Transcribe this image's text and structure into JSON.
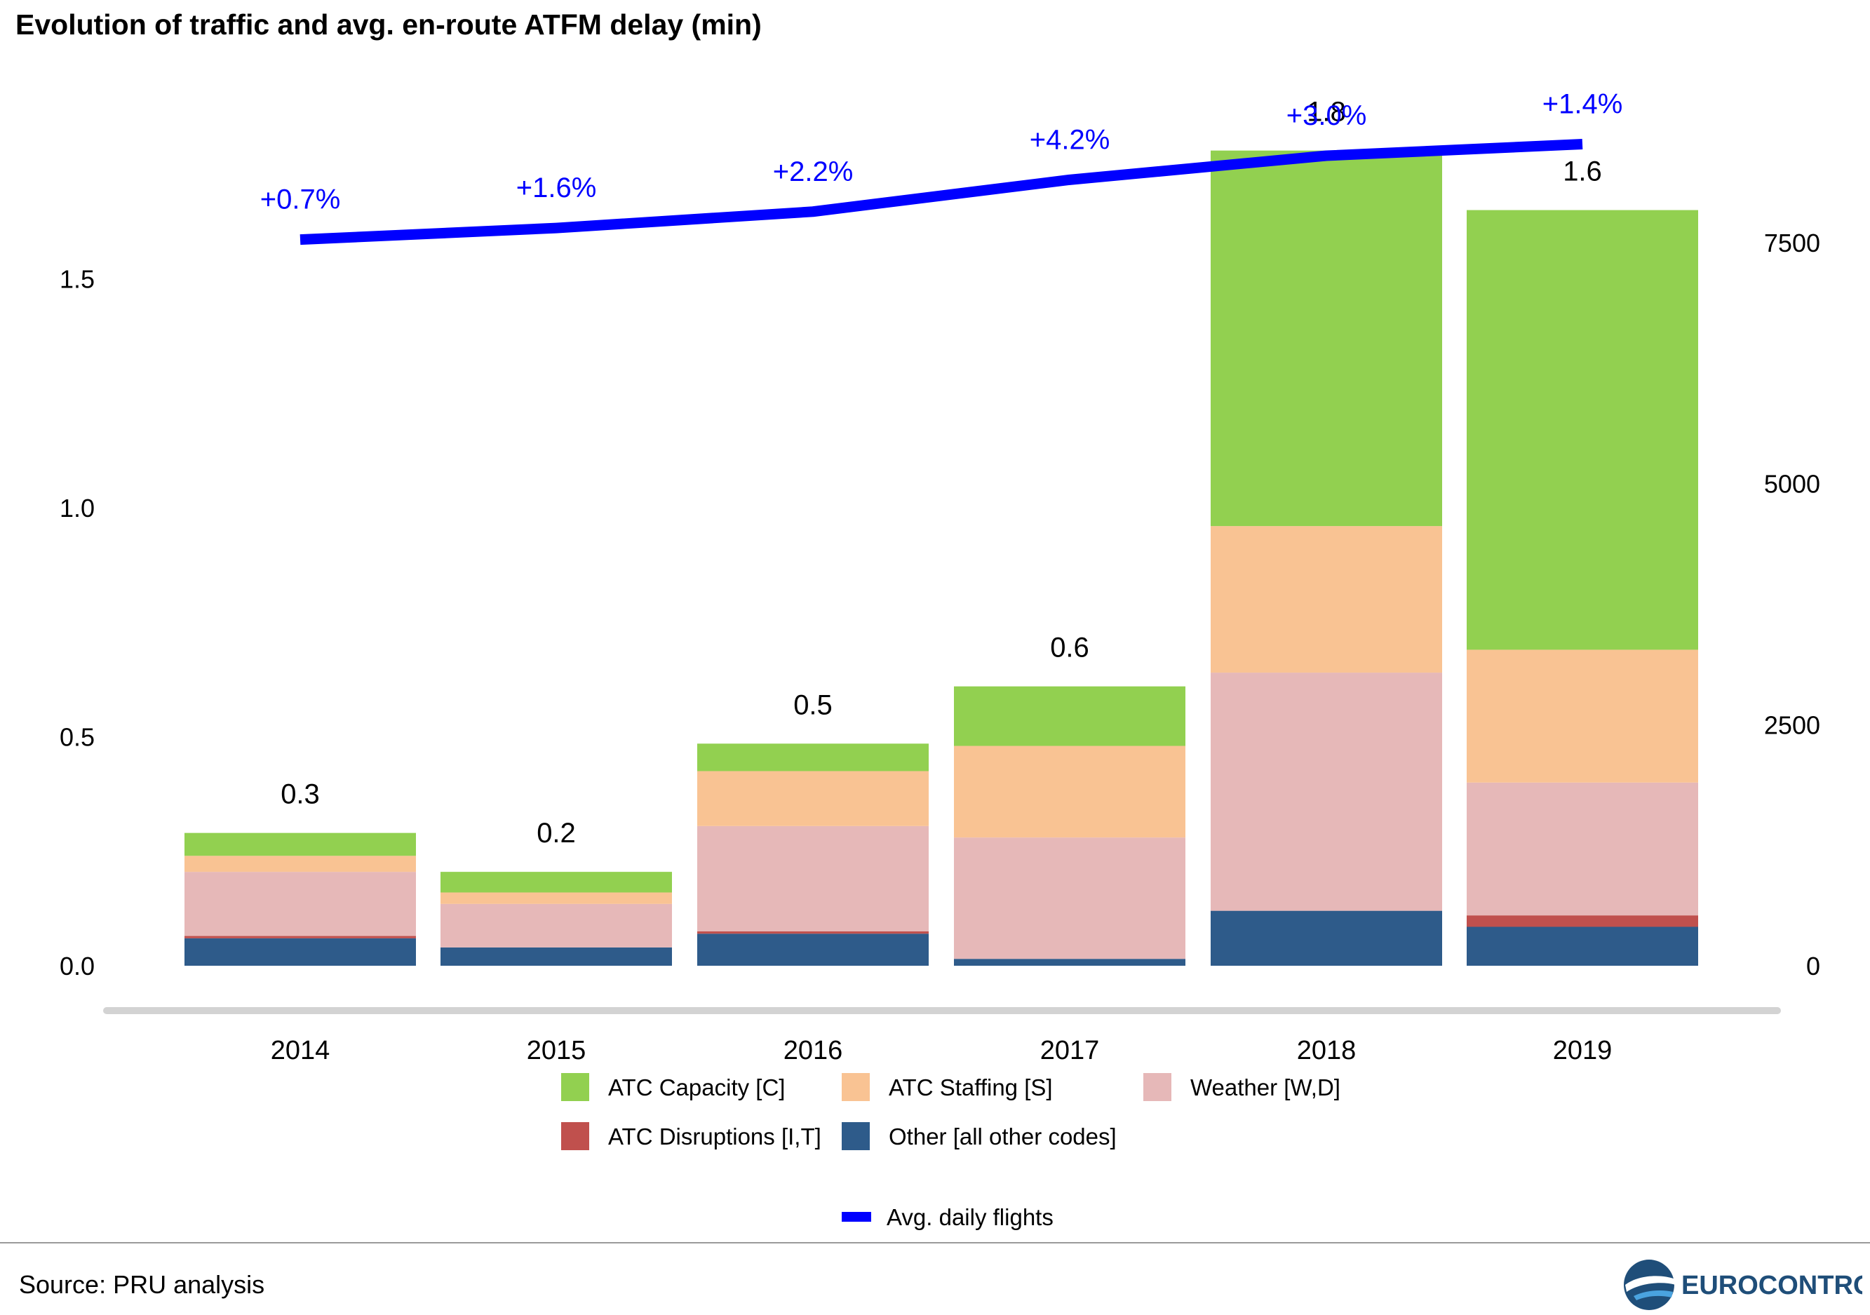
{
  "title": "Evolution of traffic and avg. en-route ATFM delay (min)",
  "source": "Source: PRU analysis",
  "logo_text": "EUROCONTROL",
  "chart_data": {
    "type": "bar",
    "stacked": true,
    "categories": [
      "2014",
      "2015",
      "2016",
      "2017",
      "2018",
      "2019"
    ],
    "series": [
      {
        "name": "Other [all other codes]",
        "color": "#2e5b8a",
        "values": [
          0.06,
          0.04,
          0.07,
          0.015,
          0.12,
          0.085
        ]
      },
      {
        "name": "ATC Disruptions [I,T]",
        "color": "#c0504d",
        "values": [
          0.005,
          0.0,
          0.005,
          0.0,
          0.0,
          0.025
        ]
      },
      {
        "name": "Weather [W,D]",
        "color": "#e6b8b8",
        "values": [
          0.14,
          0.095,
          0.23,
          0.265,
          0.52,
          0.29
        ]
      },
      {
        "name": "ATC Staffing [S]",
        "color": "#f9c393",
        "values": [
          0.035,
          0.025,
          0.12,
          0.2,
          0.32,
          0.29
        ]
      },
      {
        "name": "ATC Capacity [C]",
        "color": "#92d050",
        "values": [
          0.05,
          0.045,
          0.06,
          0.13,
          0.82,
          0.96
        ]
      }
    ],
    "totals": [
      "0.3",
      "0.2",
      "0.5",
      "0.6",
      "1.8",
      "1.6"
    ],
    "line": {
      "name": "Avg. daily flights",
      "color": "#0000ff",
      "axis": "right",
      "values": [
        7530,
        7650,
        7820,
        8150,
        8400,
        8520
      ],
      "labels": [
        "+0.7%",
        "+1.6%",
        "+2.2%",
        "+4.2%",
        "+3.0%",
        "+1.4%"
      ]
    },
    "y_left": {
      "ylim": [
        0,
        1.85
      ],
      "ticks": [
        "0.0",
        "0.5",
        "1.0",
        "1.5"
      ],
      "tick_values": [
        0,
        0.5,
        1.0,
        1.5
      ]
    },
    "y_right": {
      "ylim": [
        0,
        10000
      ],
      "ticks": [
        "0",
        "2500",
        "5000",
        "7500"
      ],
      "tick_values": [
        0,
        2500,
        5000,
        7500
      ]
    },
    "grid": false,
    "legend_position": "bottom",
    "legend_order": [
      "ATC Capacity [C]",
      "ATC Staffing [S]",
      "Weather [W,D]",
      "ATC Disruptions [I,T]",
      "Other [all other codes]"
    ]
  }
}
